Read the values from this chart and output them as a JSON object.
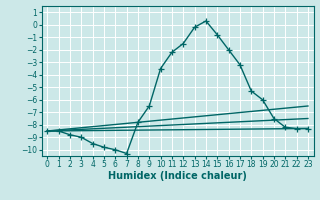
{
  "title": "",
  "xlabel": "Humidex (Indice chaleur)",
  "background_color": "#cce8e8",
  "grid_color": "#ffffff",
  "line_color": "#006666",
  "xlim": [
    -0.5,
    23.5
  ],
  "ylim": [
    -10.5,
    1.5
  ],
  "xticks": [
    0,
    1,
    2,
    3,
    4,
    5,
    6,
    7,
    8,
    9,
    10,
    11,
    12,
    13,
    14,
    15,
    16,
    17,
    18,
    19,
    20,
    21,
    22,
    23
  ],
  "yticks": [
    1,
    0,
    -1,
    -2,
    -3,
    -4,
    -5,
    -6,
    -7,
    -8,
    -9,
    -10
  ],
  "main_series": {
    "x": [
      0,
      1,
      2,
      3,
      4,
      5,
      6,
      7,
      8,
      9,
      10,
      11,
      12,
      13,
      14,
      15,
      16,
      17,
      18,
      19,
      20,
      21,
      22,
      23
    ],
    "y": [
      -8.5,
      -8.5,
      -8.8,
      -9.0,
      -9.5,
      -9.8,
      -10.0,
      -10.3,
      -7.8,
      -6.5,
      -3.5,
      -2.2,
      -1.5,
      -0.2,
      0.3,
      -0.8,
      -2.0,
      -3.2,
      -5.3,
      -6.0,
      -7.5,
      -8.2,
      -8.3,
      -8.3
    ]
  },
  "line_series": [
    {
      "x": [
        0,
        23
      ],
      "y": [
        -8.5,
        -8.3
      ]
    },
    {
      "x": [
        0,
        23
      ],
      "y": [
        -8.5,
        -7.5
      ]
    },
    {
      "x": [
        0,
        23
      ],
      "y": [
        -8.5,
        -6.5
      ]
    }
  ],
  "xlabel_fontsize": 7,
  "tick_fontsize": 5.5,
  "linewidth": 1.0,
  "marker": "+",
  "markersize": 4,
  "figsize": [
    3.2,
    2.0
  ],
  "dpi": 100
}
